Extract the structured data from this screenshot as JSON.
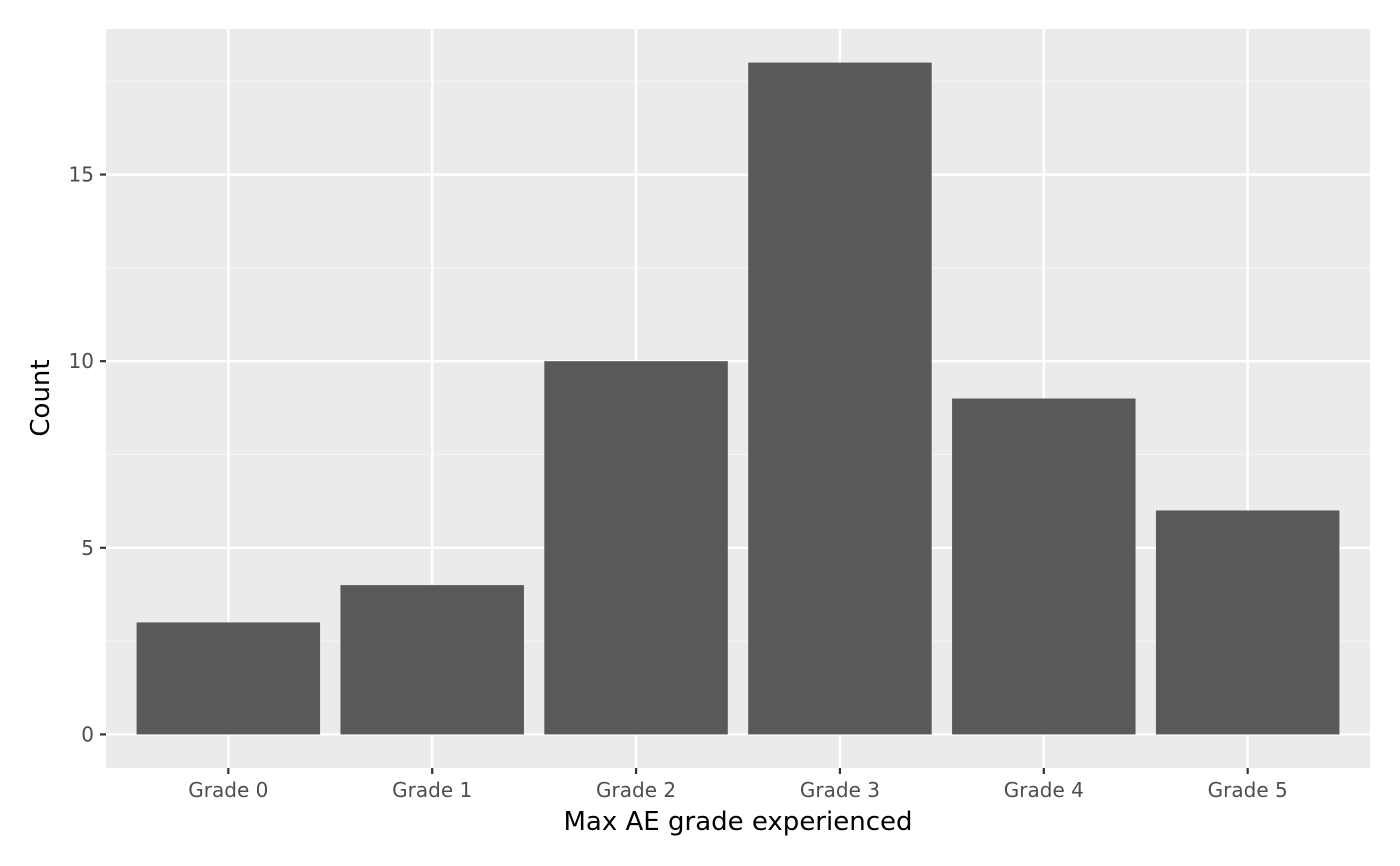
{
  "chart_data": {
    "type": "bar",
    "categories": [
      "Grade 0",
      "Grade 1",
      "Grade 2",
      "Grade 3",
      "Grade 4",
      "Grade 5"
    ],
    "values": [
      3,
      4,
      10,
      18,
      9,
      6
    ],
    "title": "",
    "xlabel": "Max AE grade experienced",
    "ylabel": "Count",
    "ylim": [
      -0.9,
      18.9
    ],
    "y_ticks": [
      0,
      5,
      10,
      15
    ],
    "y_tick_labels": [
      "0",
      "5",
      "10",
      "15"
    ],
    "grid": true,
    "legend": "none"
  },
  "colors": {
    "panel_background": "#ebebeb",
    "grid_major": "#ffffff",
    "grid_minor": "#f5f5f5",
    "bar_fill": "#595959",
    "tick_text": "#4d4d4d",
    "axis_title": "#000000"
  }
}
